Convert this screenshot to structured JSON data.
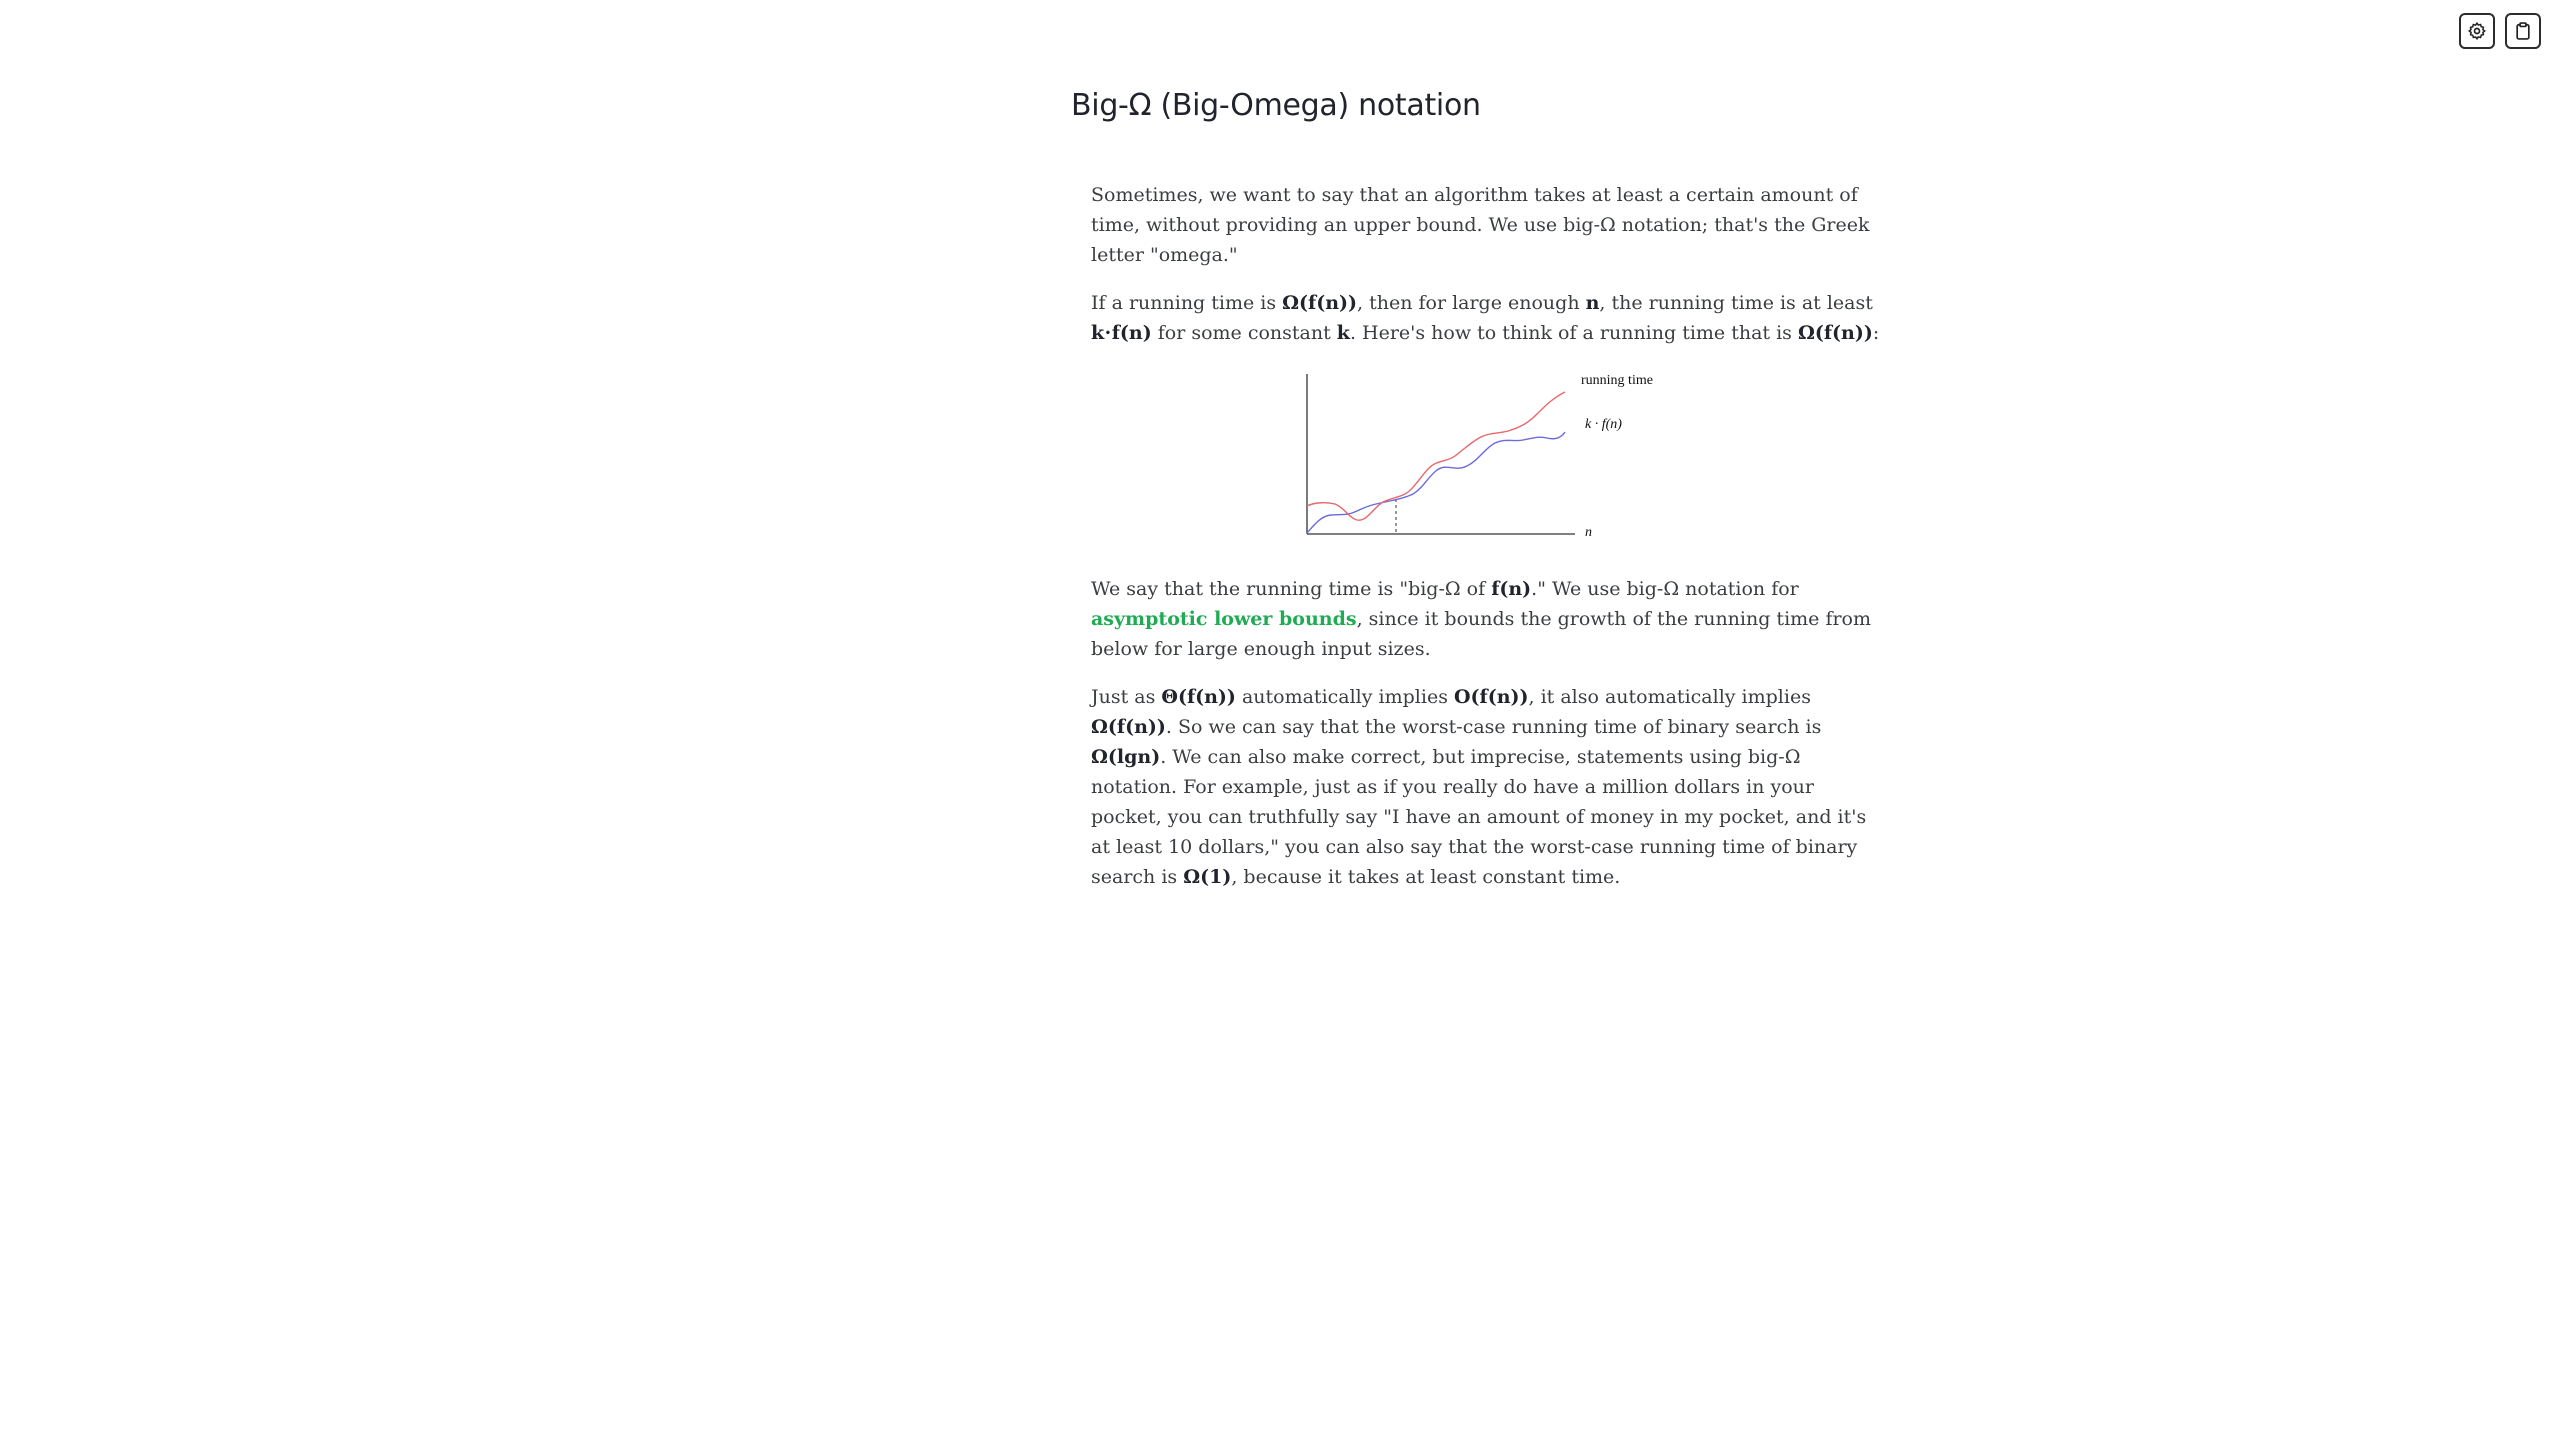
{
  "toolbar": {
    "settings_icon": "gear-icon",
    "clipboard_icon": "clipboard-icon"
  },
  "title": "Big-Ω (Big-Omega) notation",
  "paragraphs": {
    "p1": {
      "text": "Sometimes, we want to say that an algorithm takes at least a certain amount of time, without providing an upper bound. We use big-Ω notation; that's the Greek letter \"omega.\""
    },
    "p2": {
      "s1": "If a running time is ",
      "b1": "Ω(f(n))",
      "s2": ", then for large enough ",
      "b2": "n",
      "s3": ", the running time is at least ",
      "b3": "k⋅f(n)",
      "s4": " for some constant ",
      "b4": "k",
      "s5": ". Here's how to think of a running time that is ",
      "b5": "Ω(f(n))",
      "s6": ":"
    },
    "p3": {
      "s1": "We say that the running time is \"big-Ω of ",
      "b1": "f(n)",
      "s2": ".\" We use big-Ω notation for ",
      "link": "asymptotic lower bounds",
      "s3": ", since it bounds the growth of the running time from below for large enough input sizes."
    },
    "p4": {
      "s1": "Just as ",
      "b1": "Θ(f(n))",
      "s2": " automatically implies ",
      "b2": "O(f(n))",
      "s3": ", it also automatically implies ",
      "b3": "Ω(f(n))",
      "s4": ". So we can say that the worst-case running time of binary search is ",
      "b4": "Ω(lgn)",
      "s5": ". We can also make correct, but imprecise, statements using big-Ω notation. For example, just as if you really do have a million dollars in your pocket, you can truthfully say \"I have an amount of money in my pocket, and it's at least 10 dollars,\" you can also say that the worst-case running time of binary search is ",
      "b5": "Ω(1)",
      "s6": ", because it takes at least constant time."
    }
  },
  "figure": {
    "running_time_label": "running time",
    "kfn_label": "k · f(n)",
    "x_axis_label": "n",
    "colors": {
      "running_time": "#e8676b",
      "kfn": "#6b6bde",
      "axis": "#333333"
    }
  }
}
